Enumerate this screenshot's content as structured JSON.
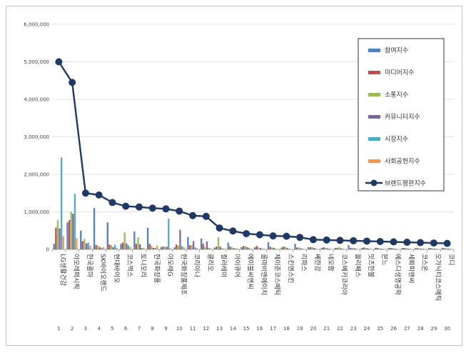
{
  "chart_data": {
    "type": "bar",
    "title": "",
    "xlabel": "",
    "ylabel": "",
    "ylim": [
      0,
      6000000
    ],
    "yticks": [
      0,
      1000000,
      2000000,
      3000000,
      4000000,
      5000000,
      6000000
    ],
    "ytick_labels": [
      "0",
      "1,000,000",
      "2,000,000",
      "3,000,000",
      "4,000,000",
      "5,000,000",
      "6,000,000"
    ],
    "legend_position": "right",
    "categories": [
      "LG생활건강",
      "아모레퍼시픽",
      "한국콜마",
      "SK바이오랜드",
      "현대바이오",
      "코스맥스",
      "토니모리",
      "한국화장품",
      "아모레G",
      "한국화장품제조",
      "코리아나",
      "클리오",
      "컬러레이",
      "아이큐어",
      "에이블씨엔씨",
      "콜마비앤에이치",
      "제이준코스메틱",
      "스킨앤스킨",
      "리파스",
      "쎄한강",
      "네오팜",
      "코스메카코리아",
      "올리패스",
      "잇츠한불",
      "본느",
      "에스디생명공학",
      "세화피앤씨",
      "코스온",
      "오가닉티코스메틱",
      "코디"
    ],
    "ranks": [
      "1",
      "2",
      "3",
      "4",
      "5",
      "6",
      "7",
      "8",
      "9",
      "10",
      "11",
      "12",
      "13",
      "14",
      "15",
      "16",
      "17",
      "18",
      "19",
      "20",
      "21",
      "22",
      "23",
      "24",
      "25",
      "26",
      "27",
      "28",
      "29",
      "30"
    ],
    "series": [
      {
        "name": "참여지수",
        "kind": "bar",
        "color": "#4f81bd",
        "values": [
          150000,
          720000,
          500000,
          1100000,
          720000,
          150000,
          480000,
          580000,
          60000,
          60000,
          330000,
          290000,
          50000,
          180000,
          60000,
          60000,
          190000,
          50000,
          150000,
          60000,
          40000,
          40000,
          110000,
          40000,
          40000,
          40000,
          40000,
          40000,
          40000,
          40000
        ]
      },
      {
        "name": "미디어지수",
        "kind": "bar",
        "color": "#c0504d",
        "values": [
          580000,
          780000,
          220000,
          120000,
          130000,
          180000,
          150000,
          150000,
          80000,
          130000,
          110000,
          150000,
          80000,
          80000,
          90000,
          90000,
          70000,
          80000,
          50000,
          60000,
          60000,
          40000,
          40000,
          50000,
          40000,
          40000,
          40000,
          30000,
          30000,
          30000
        ]
      },
      {
        "name": "소통지수",
        "kind": "bar",
        "color": "#9bbb59",
        "values": [
          780000,
          1000000,
          280000,
          100000,
          110000,
          450000,
          320000,
          100000,
          70000,
          100000,
          120000,
          60000,
          320000,
          60000,
          90000,
          50000,
          50000,
          60000,
          50000,
          60000,
          40000,
          60000,
          40000,
          40000,
          30000,
          40000,
          40000,
          30000,
          30000,
          30000
        ]
      },
      {
        "name": "커뮤니티지수",
        "kind": "bar",
        "color": "#8064a2",
        "values": [
          560000,
          950000,
          160000,
          60000,
          60000,
          160000,
          140000,
          40000,
          70000,
          520000,
          220000,
          210000,
          70000,
          30000,
          60000,
          40000,
          40000,
          40000,
          30000,
          40000,
          30000,
          30000,
          30000,
          30000,
          20000,
          20000,
          20000,
          20000,
          20000,
          20000
        ]
      },
      {
        "name": "시장지수",
        "kind": "bar",
        "color": "#4bacc6",
        "values": [
          2450000,
          1480000,
          180000,
          40000,
          120000,
          110000,
          40000,
          40000,
          820000,
          90000,
          50000,
          40000,
          30000,
          30000,
          40000,
          20000,
          20000,
          20000,
          20000,
          20000,
          20000,
          20000,
          20000,
          20000,
          20000,
          20000,
          20000,
          20000,
          20000,
          20000
        ]
      },
      {
        "name": "사회공헌지수",
        "kind": "bar",
        "color": "#f79646",
        "values": [
          350000,
          300000,
          100000,
          60000,
          40000,
          60000,
          40000,
          100000,
          30000,
          60000,
          30000,
          30000,
          20000,
          20000,
          20000,
          20000,
          10000,
          10000,
          10000,
          10000,
          10000,
          10000,
          10000,
          10000,
          10000,
          10000,
          10000,
          10000,
          10000,
          10000
        ]
      },
      {
        "name": "브랜드평판지수",
        "kind": "line",
        "color": "#1f3864",
        "values": [
          5000000,
          4450000,
          1500000,
          1450000,
          1250000,
          1150000,
          1130000,
          1100000,
          1080000,
          1020000,
          900000,
          880000,
          570000,
          490000,
          420000,
          390000,
          360000,
          350000,
          320000,
          260000,
          250000,
          240000,
          230000,
          220000,
          210000,
          200000,
          190000,
          180000,
          170000,
          160000
        ]
      }
    ]
  }
}
